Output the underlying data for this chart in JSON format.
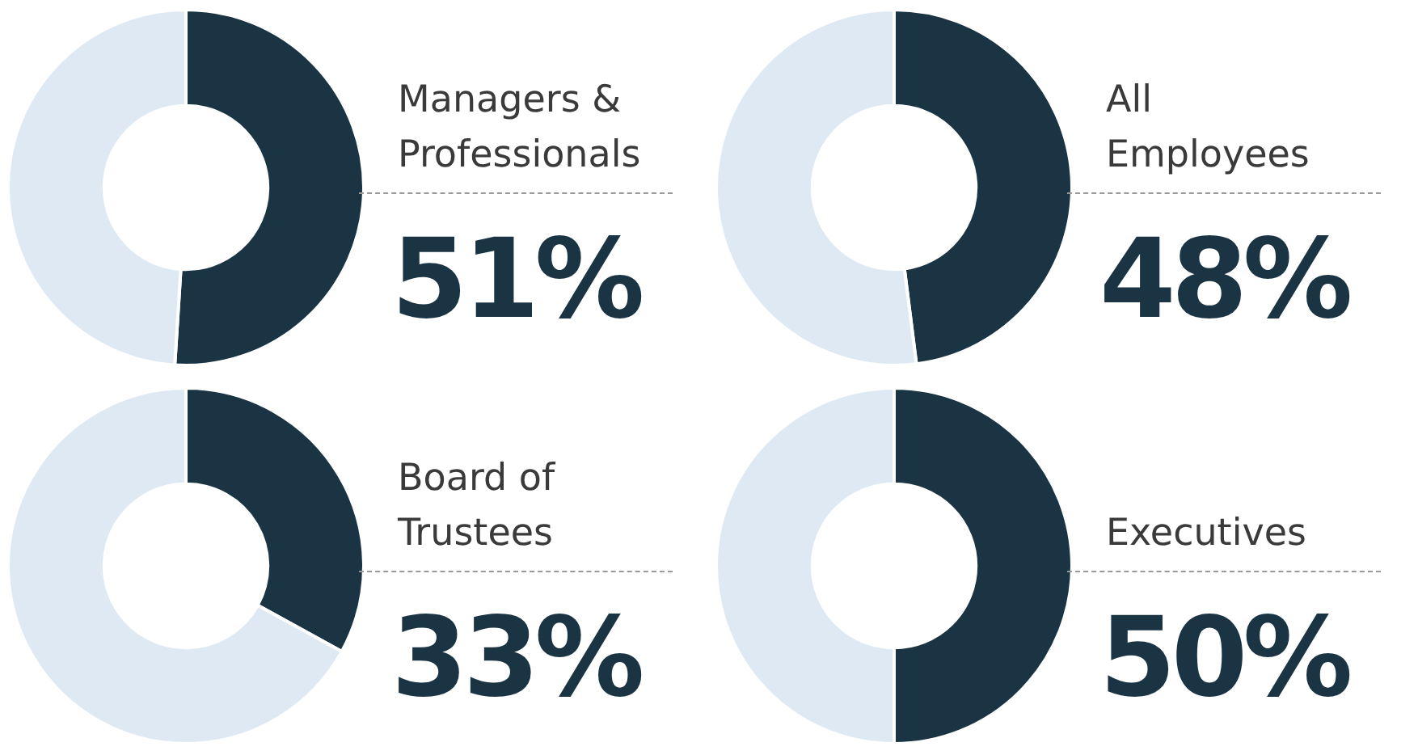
{
  "chart_data": [
    {
      "type": "donut",
      "title": "Managers & Professionals",
      "categories": [
        null,
        null
      ],
      "values": [
        51,
        49
      ],
      "colors": [
        "#1a3444",
        "#dfe9f3"
      ],
      "value_labels": [
        "51%",
        null
      ]
    },
    {
      "type": "donut",
      "title": "All Employees",
      "categories": [
        null,
        null
      ],
      "values": [
        48,
        52
      ],
      "colors": [
        "#1a3444",
        "#dfe9f3"
      ],
      "value_labels": [
        "48%",
        null
      ]
    },
    {
      "type": "donut",
      "title": "Board of Trustees",
      "categories": [
        null,
        null
      ],
      "values": [
        33,
        67
      ],
      "colors": [
        "#1a3444",
        "#dfe9f3"
      ],
      "value_labels": [
        "33%",
        null
      ]
    },
    {
      "type": "donut",
      "title": "Executives",
      "categories": [
        null,
        null
      ],
      "values": [
        50,
        50
      ],
      "colors": [
        "#1a3444",
        "#dfe9f3"
      ],
      "value_labels": [
        "50%",
        null
      ]
    }
  ]
}
